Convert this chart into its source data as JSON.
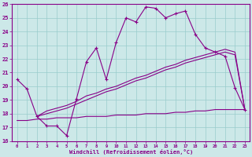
{
  "xlabel": "Windchill (Refroidissement éolien,°C)",
  "bg_color": "#cce8e8",
  "line_color": "#880088",
  "grid_color": "#99cccc",
  "xlim": [
    -0.5,
    23.5
  ],
  "ylim": [
    16,
    26
  ],
  "xticks": [
    0,
    1,
    2,
    3,
    4,
    5,
    6,
    7,
    8,
    9,
    10,
    11,
    12,
    13,
    14,
    15,
    16,
    17,
    18,
    19,
    20,
    21,
    22,
    23
  ],
  "yticks": [
    16,
    17,
    18,
    19,
    20,
    21,
    22,
    23,
    24,
    25,
    26
  ],
  "line1_x": [
    0,
    1,
    2,
    3,
    4,
    5,
    6,
    7,
    8,
    9,
    10,
    11,
    12,
    13,
    14,
    15,
    16,
    17,
    18,
    19,
    20,
    21,
    22,
    23
  ],
  "line1_y": [
    20.5,
    19.8,
    17.8,
    17.1,
    17.1,
    16.4,
    19.1,
    21.8,
    22.8,
    20.5,
    23.2,
    25.0,
    24.7,
    25.8,
    25.7,
    25.0,
    25.3,
    25.5,
    23.8,
    22.8,
    22.5,
    22.2,
    19.9,
    18.3
  ],
  "line2_x": [
    2,
    3,
    4,
    5,
    6,
    7,
    8,
    9,
    10,
    11,
    12,
    13,
    14,
    15,
    16,
    17,
    18,
    19,
    20,
    21,
    22,
    23
  ],
  "line2_y": [
    17.8,
    18.2,
    18.4,
    18.6,
    18.9,
    19.3,
    19.5,
    19.8,
    20.0,
    20.3,
    20.6,
    20.8,
    21.1,
    21.4,
    21.6,
    21.9,
    22.1,
    22.3,
    22.5,
    22.7,
    22.5,
    18.3
  ],
  "line3_x": [
    2,
    3,
    4,
    5,
    6,
    7,
    8,
    9,
    10,
    11,
    12,
    13,
    14,
    15,
    16,
    17,
    18,
    19,
    20,
    21,
    22,
    23
  ],
  "line3_y": [
    17.8,
    18.0,
    18.2,
    18.4,
    18.7,
    19.0,
    19.3,
    19.6,
    19.8,
    20.1,
    20.4,
    20.6,
    20.9,
    21.2,
    21.4,
    21.7,
    21.9,
    22.1,
    22.3,
    22.5,
    22.3,
    18.3
  ],
  "line4_x": [
    0,
    1,
    2,
    3,
    4,
    5,
    6,
    7,
    8,
    9,
    10,
    11,
    12,
    13,
    14,
    15,
    16,
    17,
    18,
    19,
    20,
    21,
    22,
    23
  ],
  "line4_y": [
    17.5,
    17.5,
    17.6,
    17.6,
    17.7,
    17.7,
    17.7,
    17.8,
    17.8,
    17.8,
    17.9,
    17.9,
    17.9,
    18.0,
    18.0,
    18.0,
    18.1,
    18.1,
    18.2,
    18.2,
    18.3,
    18.3,
    18.3,
    18.3
  ]
}
